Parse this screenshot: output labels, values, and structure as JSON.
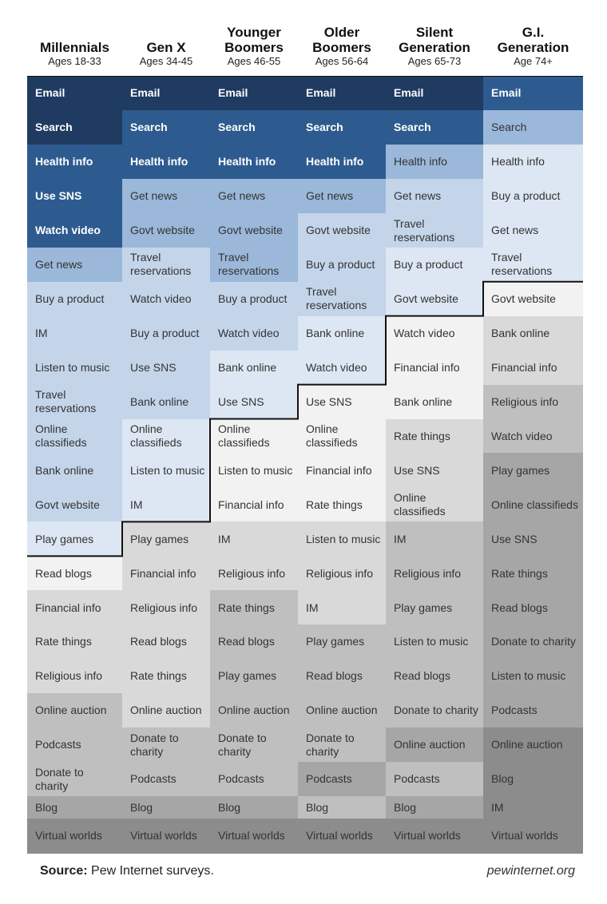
{
  "chart_data": {
    "type": "table",
    "shade_colors": [
      "#1f3b61",
      "#2e5b8f",
      "#9bb8da",
      "#c4d5ea",
      "#dde7f3",
      "#f2f2f2",
      "#d9d9d9",
      "#bfbfbf",
      "#a6a6a6",
      "#8c8c8c"
    ],
    "columns": [
      {
        "name": "Millennials",
        "ages": "Ages 18-33",
        "majority_count": 14,
        "items": [
          "Email",
          "Search",
          "Health info",
          "Use SNS",
          "Watch video",
          "Get news",
          "Buy a product",
          "IM",
          "Listen to music",
          "Travel reservations",
          "Online classifieds",
          "Bank online",
          "Govt website",
          "Play games",
          "Read blogs",
          "Financial info",
          "Rate things",
          "Religious info",
          "Online auction",
          "Podcasts",
          "Donate to charity",
          "Blog",
          "Virtual worlds"
        ],
        "shades": [
          0,
          0,
          1,
          1,
          1,
          2,
          3,
          3,
          3,
          3,
          3,
          3,
          3,
          4,
          5,
          6,
          6,
          6,
          7,
          7,
          7,
          8,
          9
        ]
      },
      {
        "name": "Gen X",
        "ages": "Ages 34-45",
        "majority_count": 13,
        "items": [
          "Email",
          "Search",
          "Health info",
          "Get news",
          "Govt website",
          "Travel reservations",
          "Watch video",
          "Buy a product",
          "Use SNS",
          "Bank online",
          "Online classifieds",
          "Listen to music",
          "IM",
          "Play games",
          "Financial info",
          "Religious info",
          "Read blogs",
          "Rate things",
          "Online auction",
          "Donate to charity",
          "Podcasts",
          "Blog",
          "Virtual worlds"
        ],
        "shades": [
          0,
          1,
          1,
          2,
          2,
          3,
          3,
          3,
          3,
          3,
          4,
          4,
          4,
          6,
          6,
          6,
          6,
          6,
          6,
          7,
          7,
          8,
          9
        ]
      },
      {
        "name": "Younger\nBoomers",
        "ages": "Ages 46-55",
        "majority_count": 10,
        "items": [
          "Email",
          "Search",
          "Health info",
          "Get news",
          "Govt website",
          "Travel reservations",
          "Buy a product",
          "Watch video",
          "Bank online",
          "Use SNS",
          "Online classifieds",
          "Listen to music",
          "Financial info",
          "IM",
          "Religious info",
          "Rate things",
          "Read blogs",
          "Play games",
          "Online auction",
          "Donate to charity",
          "Podcasts",
          "Blog",
          "Virtual worlds"
        ],
        "shades": [
          0,
          1,
          1,
          2,
          2,
          2,
          3,
          3,
          4,
          4,
          5,
          5,
          5,
          6,
          6,
          7,
          7,
          7,
          7,
          7,
          7,
          8,
          9
        ]
      },
      {
        "name": "Older\nBoomers",
        "ages": "Ages 56-64",
        "majority_count": 9,
        "items": [
          "Email",
          "Search",
          "Health info",
          "Get news",
          "Govt website",
          "Buy a product",
          "Travel reservations",
          "Bank online",
          "Watch video",
          "Use SNS",
          "Online classifieds",
          "Financial info",
          "Rate things",
          "Listen to music",
          "Religious info",
          "IM",
          "Play games",
          "Read blogs",
          "Online auction",
          "Donate to charity",
          "Podcasts",
          "Blog",
          "Virtual worlds"
        ],
        "shades": [
          0,
          1,
          1,
          2,
          3,
          3,
          3,
          4,
          4,
          5,
          5,
          5,
          5,
          6,
          6,
          6,
          7,
          7,
          7,
          7,
          8,
          7,
          9
        ]
      },
      {
        "name": "Silent\nGeneration",
        "ages": "Ages 65-73",
        "majority_count": 7,
        "items": [
          "Email",
          "Search",
          "Health info",
          "Get news",
          "Travel reservations",
          "Buy a product",
          "Govt website",
          "Watch video",
          "Financial info",
          "Bank online",
          "Rate things",
          "Use SNS",
          "Online classifieds",
          "IM",
          "Religious info",
          "Play games",
          "Listen to music",
          "Read blogs",
          "Donate to charity",
          "Online auction",
          "Podcasts",
          "Blog",
          "Virtual worlds"
        ],
        "shades": [
          0,
          1,
          2,
          3,
          3,
          4,
          4,
          5,
          5,
          5,
          6,
          6,
          6,
          7,
          7,
          7,
          7,
          7,
          7,
          8,
          7,
          8,
          9
        ]
      },
      {
        "name": "G.I.\nGeneration",
        "ages": "Age 74+",
        "majority_count": 6,
        "items": [
          "Email",
          "Search",
          "Health info",
          "Buy a product",
          "Get news",
          "Travel reservations",
          "Govt website",
          "Bank online",
          "Financial info",
          "Religious info",
          "Watch video",
          "Play games",
          "Online classifieds",
          "Use SNS",
          "Rate things",
          "Read blogs",
          "Donate to charity",
          "Listen to music",
          "Podcasts",
          "Online auction",
          "Blog",
          "IM",
          "Virtual worlds"
        ],
        "shades": [
          1,
          2,
          4,
          4,
          4,
          4,
          5,
          6,
          6,
          7,
          7,
          8,
          8,
          8,
          8,
          8,
          8,
          8,
          8,
          9,
          9,
          9,
          9
        ]
      }
    ]
  },
  "footer": {
    "source_label": "Source:",
    "source_text": " Pew Internet surveys.",
    "site": "pewinternet.org"
  }
}
